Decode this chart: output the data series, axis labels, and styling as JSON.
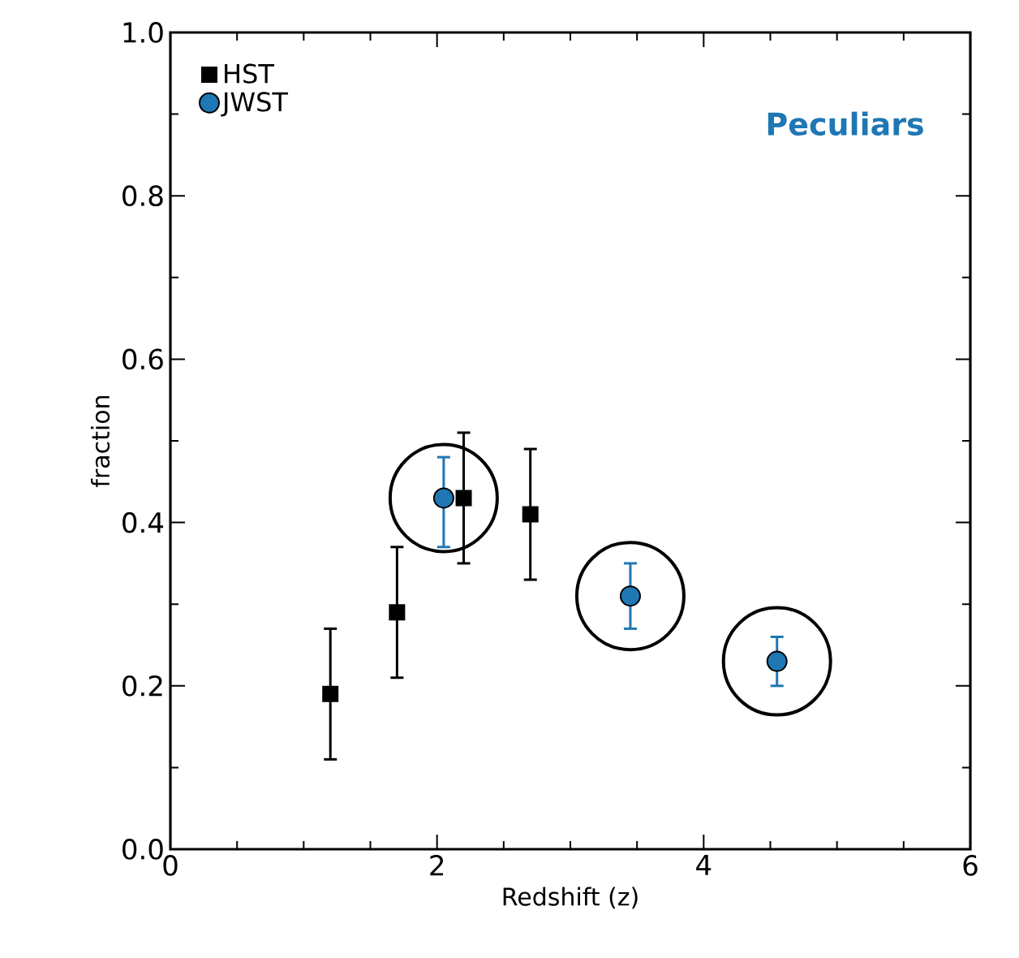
{
  "chart_data": {
    "type": "scatter",
    "xlabel": "Redshift (z)",
    "ylabel": "fraction",
    "annotations": [
      "Peculiars"
    ],
    "xlim": [
      0,
      6
    ],
    "ylim": [
      0,
      1
    ],
    "xticks": [
      0,
      2,
      4,
      6
    ],
    "yticks": [
      {
        "value": 0,
        "label": "0.0"
      },
      0.2,
      0.4,
      0.6,
      0.8,
      {
        "value": 1,
        "label": "1.0"
      }
    ],
    "legend": "top left",
    "grid": false,
    "series": [
      {
        "name": "HST",
        "color": "#000000",
        "marker": "square",
        "x": [
          1.2,
          1.7,
          2.2,
          2.7
        ],
        "values": [
          0.19,
          0.29,
          0.43,
          0.41
        ],
        "errors": [
          [
            0.11,
            0.27
          ],
          [
            0.21,
            0.37
          ],
          [
            0.35,
            0.51
          ],
          [
            0.33,
            0.49
          ]
        ]
      },
      {
        "name": "JWST",
        "color": "#1f77b4",
        "marker": "circle",
        "x": [
          2.05,
          3.45,
          4.55
        ],
        "values": [
          0.43,
          0.31,
          0.23
        ],
        "errors": [
          [
            0.37,
            0.48
          ],
          [
            0.27,
            0.35
          ],
          [
            0.2,
            0.26
          ]
        ]
      },
      {
        "type": "bubble",
        "color": "#000000",
        "x": [
          2.05,
          3.45,
          4.55
        ],
        "values": [
          0.43,
          0.31,
          0.23
        ],
        "sizes": [
          1,
          1,
          1
        ]
      }
    ]
  }
}
